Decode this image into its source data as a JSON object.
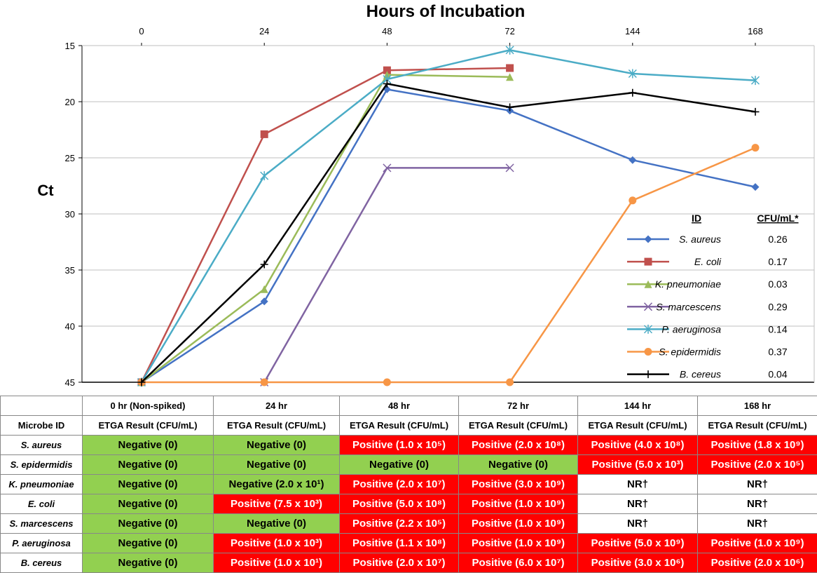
{
  "chart_data": {
    "type": "line",
    "title": "Hours of Incubation",
    "ylabel": "Ct",
    "categories": [
      "0",
      "24",
      "48",
      "72",
      "144",
      "168"
    ],
    "y_ticks": [
      15,
      20,
      25,
      30,
      35,
      40,
      45
    ],
    "ylim": [
      15,
      45
    ],
    "y_inverted": true,
    "grid": true,
    "legend_position": "right",
    "legend_headers": {
      "id": "ID",
      "cfu": "CFU/mL*"
    },
    "series": [
      {
        "name": "S. aureus",
        "cfu": "0.26",
        "color": "#4472c4",
        "marker": "diamond",
        "values": [
          45,
          37.8,
          18.9,
          20.8,
          25.2,
          27.6
        ]
      },
      {
        "name": "E. coli",
        "cfu": "0.17",
        "color": "#c0504d",
        "marker": "square",
        "values": [
          45,
          22.9,
          17.2,
          17.0,
          null,
          null
        ]
      },
      {
        "name": "K. pneumoniae",
        "cfu": "0.03",
        "color": "#9bbb59",
        "marker": "triangle",
        "values": [
          45,
          36.7,
          17.6,
          17.8,
          null,
          null
        ]
      },
      {
        "name": "S. marcescens",
        "cfu": "0.29",
        "color": "#8064a2",
        "marker": "x",
        "values": [
          null,
          45,
          25.9,
          25.9,
          null,
          null
        ]
      },
      {
        "name": "P. aeruginosa",
        "cfu": "0.14",
        "color": "#4bacc6",
        "marker": "star",
        "values": [
          45,
          26.6,
          18.0,
          15.4,
          17.5,
          18.1
        ]
      },
      {
        "name": "S. epidermidis",
        "cfu": "0.37",
        "color": "#f79646",
        "marker": "circle",
        "values": [
          45,
          45,
          45,
          45,
          28.8,
          24.1
        ]
      },
      {
        "name": "B. cereus",
        "cfu": "0.04",
        "color": "#000000",
        "marker": "plus",
        "values": [
          45,
          34.5,
          18.4,
          20.5,
          19.2,
          20.9
        ]
      }
    ]
  },
  "table": {
    "header_row_1": [
      "",
      "0 hr (Non-spiked)",
      "24 hr",
      "48 hr",
      "72 hr",
      "144 hr",
      "168 hr"
    ],
    "header_row_2": [
      "Microbe ID",
      "ETGA Result (CFU/mL)",
      "ETGA Result (CFU/mL)",
      "ETGA Result (CFU/mL)",
      "ETGA Result (CFU/mL)",
      "ETGA Result (CFU/mL)",
      "ETGA Result (CFU/mL)"
    ],
    "rows": [
      {
        "microbe": "S. aureus",
        "cells": [
          {
            "text": "Negative (0)",
            "status": "neg"
          },
          {
            "text": "Negative (0)",
            "status": "neg"
          },
          {
            "text": "Positive (1.0 x 10⁵)",
            "status": "pos"
          },
          {
            "text": "Positive (2.0 x 10⁸)",
            "status": "pos"
          },
          {
            "text": "Positive (4.0 x 10⁸)",
            "status": "pos"
          },
          {
            "text": "Positive (1.8 x 10⁹)",
            "status": "pos"
          }
        ]
      },
      {
        "microbe": "S. epidermidis",
        "cells": [
          {
            "text": "Negative (0)",
            "status": "neg"
          },
          {
            "text": "Negative (0)",
            "status": "neg"
          },
          {
            "text": "Negative (0)",
            "status": "neg"
          },
          {
            "text": "Negative (0)",
            "status": "neg"
          },
          {
            "text": "Positive (5.0 x 10³)",
            "status": "pos"
          },
          {
            "text": "Positive (2.0 x 10⁵)",
            "status": "pos"
          }
        ]
      },
      {
        "microbe": "K. pneumoniae",
        "cells": [
          {
            "text": "Negative (0)",
            "status": "neg"
          },
          {
            "text": "Negative (2.0 x 10¹)",
            "status": "neg"
          },
          {
            "text": "Positive (2.0 x 10⁷)",
            "status": "pos"
          },
          {
            "text": "Positive (3.0 x 10⁹)",
            "status": "pos"
          },
          {
            "text": "NR†",
            "status": "nr"
          },
          {
            "text": "NR†",
            "status": "nr"
          }
        ]
      },
      {
        "microbe": "E. coli",
        "cells": [
          {
            "text": "Negative (0)",
            "status": "neg"
          },
          {
            "text": "Positive (7.5 x 10³)",
            "status": "pos"
          },
          {
            "text": "Positive (5.0 x 10⁸)",
            "status": "pos"
          },
          {
            "text": "Positive (1.0 x 10⁹)",
            "status": "pos"
          },
          {
            "text": "NR†",
            "status": "nr"
          },
          {
            "text": "NR†",
            "status": "nr"
          }
        ]
      },
      {
        "microbe": "S. marcescens",
        "cells": [
          {
            "text": "Negative (0)",
            "status": "neg"
          },
          {
            "text": "Negative (0)",
            "status": "neg"
          },
          {
            "text": "Positive (2.2 x 10⁵)",
            "status": "pos"
          },
          {
            "text": "Positive (1.0 x 10⁹)",
            "status": "pos"
          },
          {
            "text": "NR†",
            "status": "nr"
          },
          {
            "text": "NR†",
            "status": "nr"
          }
        ]
      },
      {
        "microbe": "P. aeruginosa",
        "cells": [
          {
            "text": "Negative (0)",
            "status": "neg"
          },
          {
            "text": "Positive (1.0 x 10³)",
            "status": "pos"
          },
          {
            "text": "Positive (1.1 x 10⁸)",
            "status": "pos"
          },
          {
            "text": "Positive (1.0 x 10⁹)",
            "status": "pos"
          },
          {
            "text": "Positive (5.0 x 10⁹)",
            "status": "pos"
          },
          {
            "text": "Positive (1.0 x 10⁹)",
            "status": "pos"
          }
        ]
      },
      {
        "microbe": "B. cereus",
        "cells": [
          {
            "text": "Negative (0)",
            "status": "neg"
          },
          {
            "text": "Positive (1.0 x 10¹)",
            "status": "pos"
          },
          {
            "text": "Positive (2.0 x 10⁷)",
            "status": "pos"
          },
          {
            "text": "Positive (6.0 x 10⁷)",
            "status": "pos"
          },
          {
            "text": "Positive (3.0 x 10⁶)",
            "status": "pos"
          },
          {
            "text": "Positive (2.0 x 10⁶)",
            "status": "pos"
          }
        ]
      }
    ]
  }
}
